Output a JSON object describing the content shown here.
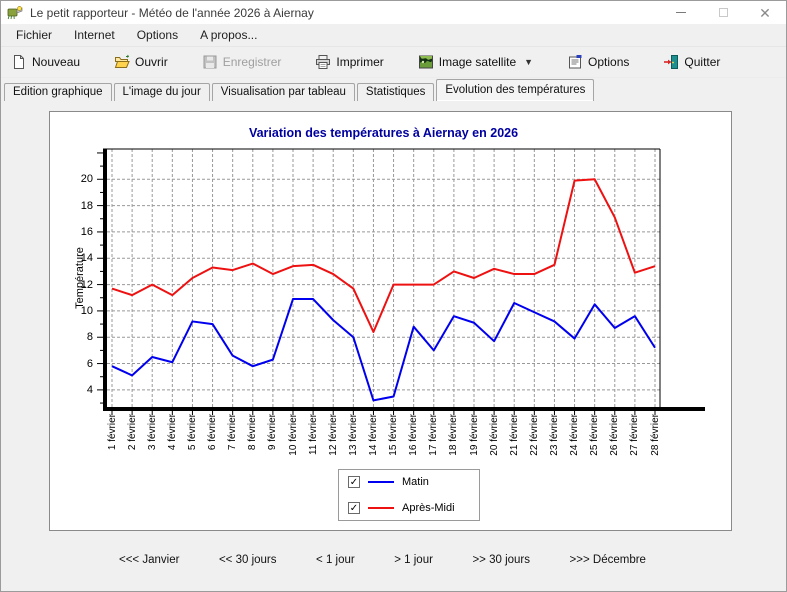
{
  "window": {
    "title": "Le petit rapporteur - Météo de l'année 2026 à Aiernay"
  },
  "menu": {
    "items": [
      {
        "label": "Fichier"
      },
      {
        "label": "Internet"
      },
      {
        "label": "Options"
      },
      {
        "label": "A propos..."
      }
    ]
  },
  "toolbar": {
    "buttons": [
      {
        "label": "Nouveau",
        "enabled": true
      },
      {
        "label": "Ouvrir",
        "enabled": true
      },
      {
        "label": "Enregistrer",
        "enabled": false
      },
      {
        "label": "Imprimer",
        "enabled": true
      },
      {
        "label": "Image satellite",
        "enabled": true,
        "has_dropdown": true
      },
      {
        "label": "Options",
        "enabled": true
      },
      {
        "label": "Quitter",
        "enabled": true
      }
    ]
  },
  "tabs": [
    {
      "label": "Edition graphique",
      "active": false
    },
    {
      "label": "L'image du jour",
      "active": false
    },
    {
      "label": "Visualisation par tableau",
      "active": false
    },
    {
      "label": "Statistiques",
      "active": false
    },
    {
      "label": "Evolution des températures",
      "active": true
    }
  ],
  "chart_data": {
    "type": "line",
    "title": "Variation des températures à Aiernay en 2026",
    "xlabel": "",
    "ylabel": "Température",
    "title_color": "#0000a0",
    "grid": true,
    "legend_position": "bottom-center",
    "ylim": [
      2.7,
      22.3
    ],
    "y_ticks": [
      4,
      6,
      8,
      10,
      12,
      14,
      16,
      18,
      20
    ],
    "x_labels": [
      "1 février",
      "2 février",
      "3 février",
      "4 février",
      "5 février",
      "6 février",
      "7 février",
      "8 février",
      "9 février",
      "10 février",
      "11 février",
      "12 février",
      "13 février",
      "14 février",
      "15 février",
      "16 février",
      "17 février",
      "18 février",
      "19 février",
      "20 février",
      "21 février",
      "22 février",
      "23 février",
      "24 février",
      "25 février",
      "26 février",
      "27 février",
      "28 février"
    ],
    "series": [
      {
        "name": "Matin",
        "color": "#0000ee",
        "checked": true,
        "values": [
          5.8,
          5.1,
          6.5,
          6.1,
          9.2,
          9.0,
          6.6,
          5.8,
          6.3,
          10.9,
          10.9,
          9.3,
          8.0,
          3.2,
          3.5,
          8.8,
          7.0,
          9.6,
          9.1,
          7.7,
          10.6,
          9.9,
          9.2,
          7.9,
          10.5,
          8.7,
          9.6,
          7.2
        ]
      },
      {
        "name": "Après-Midi",
        "color": "#ee1111",
        "checked": true,
        "values": [
          11.7,
          11.2,
          12.0,
          11.2,
          12.5,
          13.3,
          13.1,
          13.6,
          12.8,
          13.4,
          13.5,
          12.8,
          11.7,
          8.4,
          12.0,
          12.0,
          12.0,
          13.0,
          12.5,
          13.2,
          12.8,
          12.8,
          13.5,
          19.9,
          20.0,
          17.1,
          12.9,
          13.4
        ]
      }
    ]
  },
  "nav": {
    "items": [
      {
        "label": "<<< Janvier"
      },
      {
        "label": "<< 30 jours"
      },
      {
        "label": "< 1 jour"
      },
      {
        "label": "> 1 jour"
      },
      {
        "label": ">> 30 jours"
      },
      {
        "label": ">>> Décembre"
      }
    ]
  }
}
